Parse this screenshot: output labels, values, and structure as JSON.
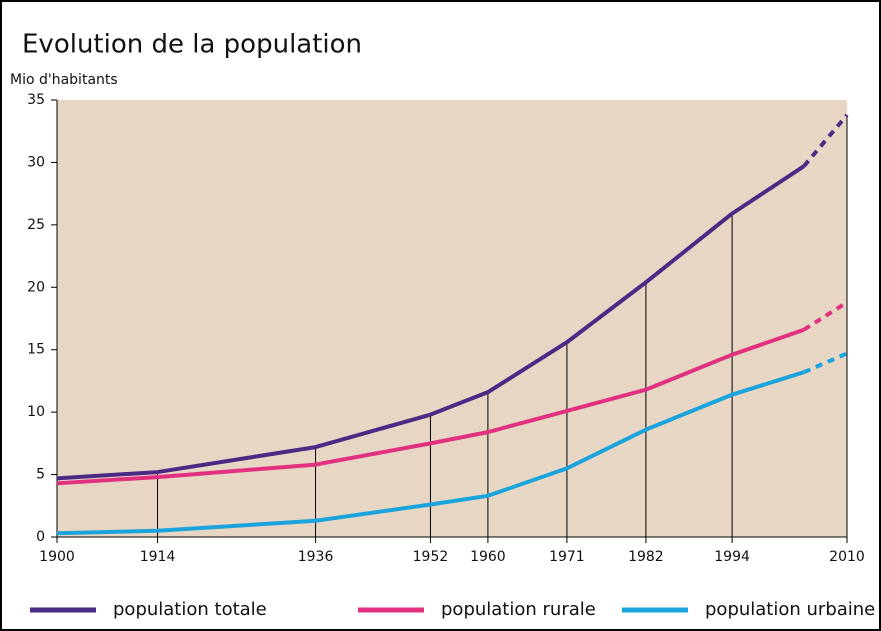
{
  "chart_data": {
    "type": "line",
    "title": "Evolution de la population",
    "y_label": "Mio d'habitants",
    "x": [
      1900,
      1914,
      1936,
      1952,
      1960,
      1971,
      1982,
      1994,
      2004,
      2010
    ],
    "projection_start": 2004,
    "series": [
      {
        "name": "population totale",
        "color": "#4b2a86",
        "values": [
          4.7,
          5.2,
          7.2,
          9.8,
          11.6,
          15.6,
          20.4,
          25.9,
          29.7,
          33.8
        ]
      },
      {
        "name": "population rurale",
        "color": "#e0307f",
        "values": [
          4.3,
          4.8,
          5.8,
          7.5,
          8.4,
          10.1,
          11.8,
          14.6,
          16.6,
          18.8
        ]
      },
      {
        "name": "population urbaine",
        "color": "#1aa3dd",
        "values": [
          0.3,
          0.5,
          1.3,
          2.6,
          3.3,
          5.5,
          8.6,
          11.4,
          13.2,
          14.7
        ]
      }
    ],
    "xlim": [
      1900,
      2010
    ],
    "xticks": [
      1900,
      1914,
      1936,
      1952,
      1960,
      1971,
      1982,
      1994,
      2010
    ],
    "ylim": [
      0,
      35
    ],
    "yticks": [
      0,
      5,
      10,
      15,
      20,
      25,
      30,
      35
    ],
    "drop_lines": true,
    "legend": "bottom"
  }
}
